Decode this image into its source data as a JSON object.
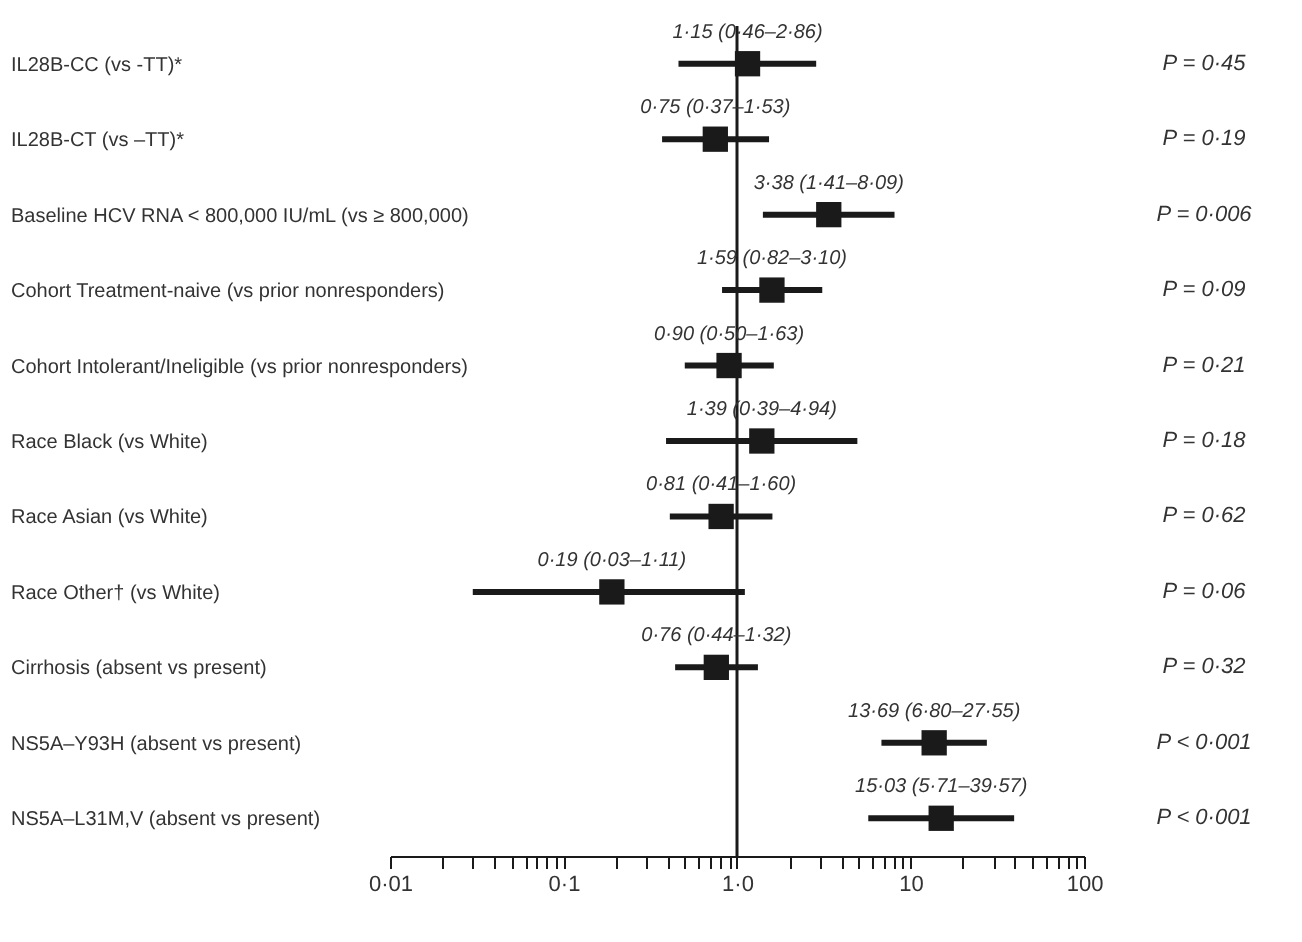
{
  "chart_data": {
    "type": "scatter",
    "marker": "square",
    "categories": [
      "IL28B-CC (vs -TT)*",
      "IL28B-CT (vs –TT)*",
      "Baseline HCV RNA < 800,000 IU/mL (vs ≥ 800,000)",
      "Cohort Treatment-naive (vs prior nonresponders)",
      "Cohort Intolerant/Ineligible (vs prior nonresponders)",
      "Race Black (vs White)",
      "Race Asian (vs White)",
      "Race Other† (vs White)",
      "Cirrhosis (absent vs present)",
      "NS5A–Y93H (absent vs present)",
      "NS5A–L31M,V (absent vs present)"
    ],
    "orientation": "horizontal",
    "series": [
      {
        "color": "#1a1a1a",
        "values": [
          1.15,
          0.75,
          3.38,
          1.59,
          0.9,
          1.39,
          0.81,
          0.19,
          0.76,
          13.69,
          15.03
        ],
        "errors": [
          [
            0.46,
            2.86
          ],
          [
            0.37,
            1.53
          ],
          [
            1.41,
            8.09
          ],
          [
            0.82,
            3.1
          ],
          [
            0.5,
            1.63
          ],
          [
            0.39,
            4.94
          ],
          [
            0.41,
            1.6
          ],
          [
            0.03,
            1.11
          ],
          [
            0.44,
            1.32
          ],
          [
            6.8,
            27.55
          ],
          [
            5.71,
            39.57
          ]
        ],
        "value_labels": [
          "1·15 (0·46–2·86)",
          "0·75 (0·37–1·53)",
          "3·38 (1·41–8·09)",
          "1·59 (0·82–3·10)",
          "0·90 (0·50–1·63)",
          "1·39 (0·39–4·94)",
          "0·81 (0·41–1·60)",
          "0·19 (0·03–1·11)",
          "0·76 (0·44–1·32)",
          "13·69 (6·80–27·55)",
          "15·03 (5·71–39·57)"
        ]
      }
    ],
    "log": "x",
    "xlim": [
      0.01,
      100
    ],
    "xticks": [
      {
        "value": 0.01,
        "label": "0·01"
      },
      {
        "value": 0.02,
        "label": null
      },
      {
        "value": 0.03,
        "label": null
      },
      {
        "value": 0.04,
        "label": null
      },
      {
        "value": 0.05,
        "label": null
      },
      {
        "value": 0.06,
        "label": null
      },
      {
        "value": 0.07,
        "label": null
      },
      {
        "value": 0.08,
        "label": null
      },
      {
        "value": 0.09,
        "label": null
      },
      {
        "value": 0.1,
        "label": "0·1"
      },
      {
        "value": 0.2,
        "label": null
      },
      {
        "value": 0.3,
        "label": null
      },
      {
        "value": 0.4,
        "label": null
      },
      {
        "value": 0.5,
        "label": null
      },
      {
        "value": 0.6,
        "label": null
      },
      {
        "value": 0.7,
        "label": null
      },
      {
        "value": 0.8,
        "label": null
      },
      {
        "value": 0.9,
        "label": null
      },
      {
        "value": 1,
        "label": "1·0"
      },
      {
        "value": 2,
        "label": null
      },
      {
        "value": 3,
        "label": null
      },
      {
        "value": 4,
        "label": null
      },
      {
        "value": 5,
        "label": null
      },
      {
        "value": 6,
        "label": null
      },
      {
        "value": 7,
        "label": null
      },
      {
        "value": 8,
        "label": null
      },
      {
        "value": 9,
        "label": null
      },
      10,
      {
        "value": 20,
        "label": null
      },
      {
        "value": 30,
        "label": null
      },
      {
        "value": 40,
        "label": null
      },
      {
        "value": 50,
        "label": null
      },
      {
        "value": 60,
        "label": null
      },
      {
        "value": 70,
        "label": null
      },
      {
        "value": 80,
        "label": null
      },
      {
        "value": 90,
        "label": null
      },
      100
    ],
    "grid": false,
    "ref_lines": [
      {
        "axis": "x",
        "value": 1,
        "color": "#1a1a1a"
      }
    ],
    "annotations": [
      "P = 0·45",
      "P = 0·19",
      "P = 0·006",
      "P = 0·09",
      "P = 0·21",
      "P = 0·18",
      "P = 0·62",
      "P = 0·06",
      "P = 0·32",
      "P < 0·001",
      "P < 0·001"
    ]
  }
}
